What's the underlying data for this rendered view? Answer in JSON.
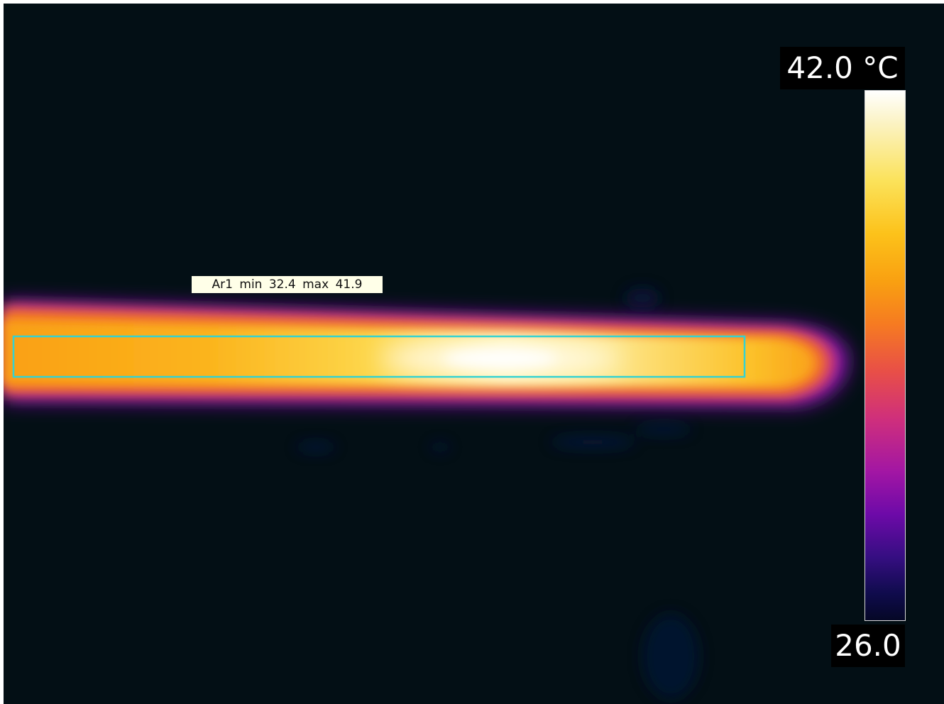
{
  "roi": {
    "name": "Ar1",
    "min_label": "min",
    "min_value": "32.4",
    "max_label": "max",
    "max_value": "41.9"
  },
  "scale": {
    "max_label": "42.0 °C",
    "min_label": "26.0"
  },
  "palette": {
    "background": "#030f15",
    "roi_outline": "#33d2d2",
    "hot": "#ffffff",
    "warm": "#fcc21a",
    "mid": "#f67b21",
    "cool": "#a216a4",
    "cold": "#050726"
  }
}
